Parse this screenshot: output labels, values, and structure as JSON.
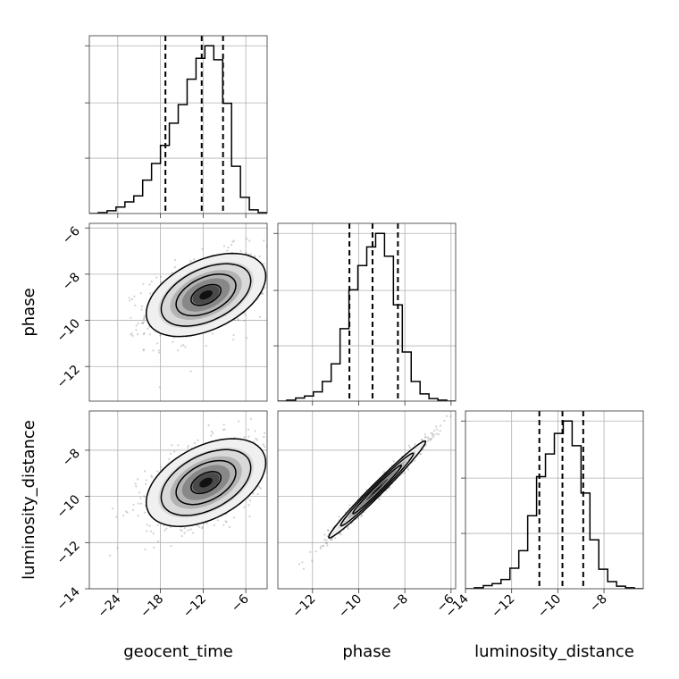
{
  "chart_data": {
    "type": "corner",
    "parameters": [
      "geocent_time",
      "phase",
      "luminosity_distance"
    ],
    "axis_labels": {
      "geocent_time": "geocent_time",
      "phase": "phase",
      "luminosity_distance": "luminosity_distance"
    },
    "ranges": {
      "geocent_time": [
        -28,
        -3
      ],
      "phase": [
        -13.5,
        -5.8
      ],
      "luminosity_distance": [
        -14,
        -6.3
      ]
    },
    "ticks": {
      "geocent_time": [
        -24,
        -18,
        -12,
        -6
      ],
      "phase_x": [
        -12,
        -10,
        -8,
        -6
      ],
      "phase_y": [
        -12,
        -10,
        -8,
        -6
      ],
      "luminosity_distance_x": [
        -14,
        -12,
        -10,
        -8
      ],
      "luminosity_distance_y": [
        -14,
        -12,
        -10,
        -8
      ]
    },
    "tick_labels": {
      "geocent_time": [
        "−24",
        "−18",
        "−12",
        "−6"
      ],
      "phase_x": [
        "−12",
        "−10",
        "−8",
        "−6"
      ],
      "phase_y": [
        "−12",
        "−10",
        "−8",
        "−6"
      ],
      "luminosity_distance_x": [
        "−14",
        "−12",
        "−10",
        "−8"
      ],
      "luminosity_distance_y": [
        "−14",
        "−12",
        "−10",
        "−8"
      ]
    },
    "histograms": {
      "geocent_time": {
        "edges": [
          -28,
          -26.75,
          -25.5,
          -24.25,
          -23,
          -21.75,
          -20.5,
          -19.25,
          -18,
          -16.75,
          -15.5,
          -14.25,
          -13,
          -11.75,
          -10.5,
          -9.25,
          -8,
          -6.75,
          -5.5,
          -4.25,
          -3
        ],
        "counts": [
          0,
          2,
          6,
          14,
          25,
          38,
          72,
          108,
          147,
          195,
          235,
          290,
          335,
          362,
          332,
          238,
          102,
          35,
          8,
          2
        ],
        "quantiles": [
          -17.3,
          -12.2,
          -9.2
        ]
      },
      "phase": {
        "edges": [
          -13.5,
          -13.115,
          -12.73,
          -12.345,
          -11.96,
          -11.575,
          -11.19,
          -10.805,
          -10.42,
          -10.035,
          -9.65,
          -9.265,
          -8.88,
          -8.495,
          -8.11,
          -7.725,
          -7.34,
          -6.955,
          -6.57,
          -6.185,
          -5.8
        ],
        "counts": [
          0,
          2,
          6,
          10,
          18,
          38,
          72,
          140,
          215,
          262,
          298,
          324,
          280,
          186,
          95,
          38,
          14,
          5,
          2,
          0
        ],
        "quantiles": [
          -10.4,
          -9.4,
          -8.3
        ]
      },
      "luminosity_distance": {
        "edges": [
          -14,
          -13.615,
          -13.23,
          -12.845,
          -12.46,
          -12.075,
          -11.69,
          -11.305,
          -10.92,
          -10.535,
          -10.15,
          -9.765,
          -9.38,
          -8.995,
          -8.61,
          -8.225,
          -7.84,
          -7.455,
          -7.07,
          -6.685,
          -6.3
        ],
        "counts": [
          0,
          2,
          6,
          10,
          18,
          40,
          74,
          142,
          218,
          262,
          302,
          326,
          278,
          186,
          95,
          38,
          14,
          5,
          2,
          0
        ],
        "quantiles": [
          -10.8,
          -9.8,
          -8.9
        ]
      }
    },
    "scatter_2d": [
      {
        "x": "geocent_time",
        "y": "phase",
        "contour_levels_sigma": [
          0.5,
          1,
          1.5,
          2
        ],
        "peak": [
          -11.6,
          -8.9
        ],
        "spread": [
          4.2,
          0.9
        ],
        "correlation": 0.45
      },
      {
        "x": "geocent_time",
        "y": "luminosity_distance",
        "contour_levels_sigma": [
          0.5,
          1,
          1.5,
          2
        ],
        "peak": [
          -11.6,
          -9.4
        ],
        "spread": [
          4.2,
          0.95
        ],
        "correlation": 0.45
      },
      {
        "x": "phase",
        "y": "luminosity_distance",
        "contour_levels_sigma": [
          1,
          1.5,
          2
        ],
        "peak": [
          -9.2,
          -9.7
        ],
        "spread": [
          1.05,
          1.05
        ],
        "correlation": 0.985
      }
    ],
    "grid": true
  }
}
